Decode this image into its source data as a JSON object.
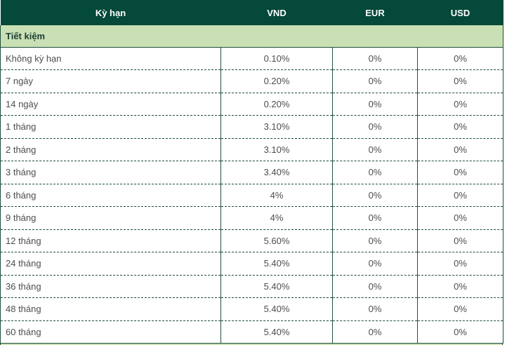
{
  "table": {
    "columns": [
      "Kỳ hạn",
      "VND",
      "EUR",
      "USD"
    ],
    "section": "Tiết kiệm",
    "rows": [
      {
        "term": "Không kỳ hạn",
        "vnd": "0.10%",
        "eur": "0%",
        "usd": "0%"
      },
      {
        "term": "7 ngày",
        "vnd": "0.20%",
        "eur": "0%",
        "usd": "0%"
      },
      {
        "term": "14 ngày",
        "vnd": "0.20%",
        "eur": "0%",
        "usd": "0%"
      },
      {
        "term": "1 tháng",
        "vnd": "3.10%",
        "eur": "0%",
        "usd": "0%"
      },
      {
        "term": "2 tháng",
        "vnd": "3.10%",
        "eur": "0%",
        "usd": "0%"
      },
      {
        "term": "3 tháng",
        "vnd": "3.40%",
        "eur": "0%",
        "usd": "0%"
      },
      {
        "term": "6 tháng",
        "vnd": "4%",
        "eur": "0%",
        "usd": "0%"
      },
      {
        "term": "9 tháng",
        "vnd": "4%",
        "eur": "0%",
        "usd": "0%"
      },
      {
        "term": "12 tháng",
        "vnd": "5.60%",
        "eur": "0%",
        "usd": "0%"
      },
      {
        "term": "24 tháng",
        "vnd": "5.40%",
        "eur": "0%",
        "usd": "0%"
      },
      {
        "term": "36 tháng",
        "vnd": "5.40%",
        "eur": "0%",
        "usd": "0%"
      },
      {
        "term": "48 tháng",
        "vnd": "5.40%",
        "eur": "0%",
        "usd": "0%"
      },
      {
        "term": "60 tháng",
        "vnd": "5.40%",
        "eur": "0%",
        "usd": "0%"
      }
    ]
  },
  "colors": {
    "header_bg": "#04493a",
    "header_text": "#ffffff",
    "section_bg": "#c9e0b5",
    "section_text": "#1d3e33",
    "border": "#1e4e3d",
    "body_text": "#4d4d4d"
  }
}
